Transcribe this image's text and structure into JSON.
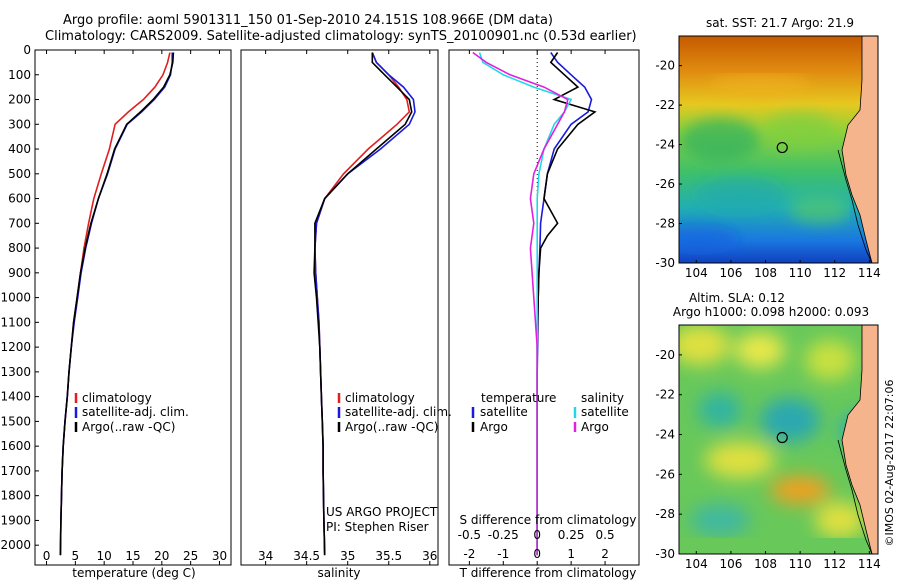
{
  "header": {
    "line1": "Argo profile: aoml 5901311_150 01-Sep-2010 24.151S 108.966E (DM data)",
    "line2": "Climatology: CARS2009. Satellite-adjusted climatology: synTS_20100901.nc (0.53d earlier)"
  },
  "colors": {
    "climatology": "#e02020",
    "satellite": "#1a1adc",
    "argo": "#000000",
    "sal_satellite": "#22d8e8",
    "sal_argo": "#e020e0"
  },
  "chart_data": [
    {
      "type": "line",
      "panel": "temperature",
      "xlabel": "temperature (deg C)",
      "ylabel": "",
      "xlim": [
        -2,
        32
      ],
      "ylim": [
        2080,
        0
      ],
      "xticks": [
        0,
        5,
        10,
        15,
        20,
        25,
        30
      ],
      "yticks": [
        0,
        100,
        200,
        300,
        400,
        500,
        600,
        700,
        800,
        900,
        1000,
        1100,
        1200,
        1300,
        1400,
        1500,
        1600,
        1700,
        1800,
        1900,
        2000
      ],
      "legend": [
        "climatology",
        "satellite-adj. clim.",
        "Argo(..raw -QC)"
      ],
      "series": [
        {
          "name": "climatology",
          "x": [
            21.4,
            21.0,
            20.2,
            18.8,
            16.8,
            14.2,
            11.9,
            10.9,
            9.5,
            8.2,
            7.3,
            6.5,
            5.9,
            5.3,
            4.7,
            4.3,
            3.9,
            3.6,
            3.2,
            2.9,
            2.7,
            2.5,
            2.4
          ],
          "y": [
            10,
            50,
            100,
            150,
            200,
            250,
            300,
            400,
            500,
            600,
            700,
            800,
            900,
            1000,
            1100,
            1200,
            1300,
            1400,
            1500,
            1600,
            1700,
            1900,
            2040
          ]
        },
        {
          "name": "satellite-adj. clim.",
          "x": [
            21.8,
            21.8,
            21.5,
            20.5,
            18.7,
            16.5,
            14.0,
            11.9,
            10.6,
            9.0,
            7.8,
            6.8,
            6.0,
            5.4,
            4.8,
            4.3,
            3.9,
            3.6,
            3.2,
            2.9,
            2.7,
            2.5,
            2.4
          ],
          "y": [
            10,
            50,
            100,
            150,
            200,
            250,
            300,
            400,
            500,
            600,
            700,
            800,
            900,
            1000,
            1100,
            1200,
            1300,
            1400,
            1500,
            1600,
            1700,
            1900,
            2040
          ]
        },
        {
          "name": "Argo(..raw -QC)",
          "x": [
            22.0,
            21.9,
            21.4,
            20.3,
            18.5,
            16.3,
            13.9,
            11.8,
            10.5,
            9.0,
            7.7,
            6.7,
            5.9,
            5.3,
            4.7,
            4.3,
            3.9,
            3.6,
            3.2,
            2.9,
            2.7,
            2.5,
            2.4
          ],
          "y": [
            10,
            50,
            100,
            150,
            200,
            250,
            300,
            400,
            500,
            600,
            700,
            800,
            900,
            1000,
            1100,
            1200,
            1300,
            1400,
            1500,
            1600,
            1700,
            1900,
            2040
          ]
        }
      ]
    },
    {
      "type": "line",
      "panel": "salinity",
      "xlabel": "salinity",
      "xlim": [
        33.7,
        36.1
      ],
      "ylim": [
        2080,
        0
      ],
      "xticks": [
        34,
        34.5,
        35,
        35.5,
        36
      ],
      "legend": [
        "climatology",
        "satellite-adj. clim.",
        "Argo(..raw -QC)"
      ],
      "annotation": [
        "US ARGO PROJECT",
        "PI: Stephen Riser"
      ],
      "series": [
        {
          "name": "climatology",
          "x": [
            35.3,
            35.35,
            35.5,
            35.62,
            35.72,
            35.75,
            35.6,
            35.25,
            34.95,
            34.72,
            34.62,
            34.6,
            34.61,
            34.63,
            34.65,
            34.66,
            34.67,
            34.68,
            34.69,
            34.7,
            34.7,
            34.71,
            34.72
          ],
          "y": [
            10,
            50,
            100,
            150,
            200,
            250,
            300,
            400,
            500,
            600,
            700,
            800,
            900,
            1000,
            1100,
            1200,
            1300,
            1400,
            1500,
            1600,
            1700,
            1900,
            2040
          ]
        },
        {
          "name": "satellite-adj. clim.",
          "x": [
            35.3,
            35.35,
            35.5,
            35.68,
            35.8,
            35.82,
            35.75,
            35.4,
            35.0,
            34.72,
            34.62,
            34.6,
            34.61,
            34.63,
            34.65,
            34.66,
            34.67,
            34.68,
            34.69,
            34.7,
            34.7,
            34.71,
            34.72
          ],
          "y": [
            10,
            50,
            100,
            150,
            200,
            250,
            300,
            400,
            500,
            600,
            700,
            800,
            900,
            1000,
            1100,
            1200,
            1300,
            1400,
            1500,
            1600,
            1700,
            1900,
            2040
          ]
        },
        {
          "name": "Argo(..raw -QC)",
          "x": [
            35.3,
            35.3,
            35.45,
            35.6,
            35.75,
            35.78,
            35.7,
            35.35,
            35.0,
            34.72,
            34.6,
            34.6,
            34.59,
            34.62,
            34.64,
            34.66,
            34.67,
            34.68,
            34.69,
            34.7,
            34.7,
            34.71,
            34.72
          ],
          "y": [
            10,
            50,
            100,
            150,
            200,
            250,
            300,
            400,
            500,
            600,
            700,
            800,
            900,
            1000,
            1100,
            1200,
            1300,
            1400,
            1500,
            1600,
            1700,
            1900,
            2040
          ]
        }
      ]
    },
    {
      "type": "line",
      "panel": "difference",
      "xlabel": "T difference from climatology",
      "x2label": "S difference from climatology",
      "xlim": [
        -2.6,
        3
      ],
      "ylim": [
        2080,
        0
      ],
      "xticks": [
        -2,
        -1,
        0,
        1,
        2
      ],
      "x2ticks": [
        "-0.5",
        "-0.25",
        "0",
        "0.25",
        "0.5"
      ],
      "legend_temperature_title": "temperature",
      "legend_salinity_title": "salinity",
      "legend_items": [
        {
          "label": "satellite",
          "color": "#1a1adc"
        },
        {
          "label": "Argo",
          "color": "#000000"
        },
        {
          "label": "satellite",
          "color": "#22d8e8"
        },
        {
          "label": "Argo",
          "color": "#e020e0"
        }
      ],
      "series": [
        {
          "name": "temperature satellite",
          "x": [
            0.4,
            0.6,
            1.0,
            1.4,
            1.6,
            1.5,
            1.0,
            0.5,
            0.3,
            0.2,
            0.1,
            0.08,
            0.05,
            0.03,
            0.02,
            0.01,
            0,
            0,
            0,
            0,
            0
          ],
          "y": [
            10,
            50,
            100,
            150,
            200,
            250,
            300,
            400,
            500,
            600,
            700,
            800,
            900,
            1000,
            1100,
            1200,
            1300,
            1400,
            1600,
            1800,
            2040
          ]
        },
        {
          "name": "temperature Argo",
          "x": [
            0.6,
            0.4,
            0.8,
            1.2,
            0.5,
            1.7,
            1.2,
            0.6,
            0.3,
            0.2,
            0.6,
            0.3,
            0.1,
            0.05,
            0.03,
            0.01,
            0,
            0,
            0,
            0,
            0
          ],
          "y": [
            10,
            50,
            100,
            150,
            200,
            250,
            300,
            400,
            500,
            600,
            700,
            750,
            800,
            900,
            1000,
            1100,
            1200,
            1400,
            1600,
            1800,
            2040
          ]
        },
        {
          "name": "salinity satellite",
          "x": [
            -1.7,
            -1.6,
            -1.0,
            -0.1,
            1.0,
            0.8,
            0.5,
            0.2,
            0.05,
            0.0,
            0.0,
            0.0,
            0.0,
            0.0,
            0.0,
            0.0,
            0.0
          ],
          "y": [
            10,
            50,
            100,
            150,
            200,
            250,
            300,
            400,
            500,
            600,
            700,
            800,
            1000,
            1200,
            1400,
            1700,
            2040
          ]
        },
        {
          "name": "salinity Argo",
          "x": [
            -1.9,
            -1.5,
            -0.8,
            0.2,
            0.9,
            0.8,
            0.6,
            0.2,
            -0.1,
            -0.2,
            -0.1,
            -0.2,
            -0.1,
            0.0,
            0.0,
            0.0,
            0.0
          ],
          "y": [
            10,
            50,
            100,
            150,
            200,
            250,
            300,
            400,
            500,
            600,
            700,
            800,
            1000,
            1200,
            1400,
            1700,
            2040
          ]
        }
      ]
    },
    {
      "type": "heatmap",
      "panel": "sst-map",
      "title": "sat. SST: 21.7 Argo: 21.9",
      "xlim": [
        103,
        114.5
      ],
      "ylim": [
        -30,
        -18.5
      ],
      "xticks": [
        104,
        106,
        108,
        110,
        112,
        114
      ],
      "yticks": [
        -20,
        -22,
        -24,
        -26,
        -28,
        -30
      ],
      "float_position": {
        "lon": 108.966,
        "lat": -24.151
      }
    },
    {
      "type": "heatmap",
      "panel": "sla-map",
      "title": "Altim. SLA: 0.12",
      "subtitle": "Argo h1000: 0.098 h2000: 0.093",
      "xlim": [
        103,
        114.5
      ],
      "ylim": [
        -30,
        -18.5
      ],
      "xticks": [
        104,
        106,
        108,
        110,
        112,
        114
      ],
      "yticks": [
        -20,
        -22,
        -24,
        -26,
        -28,
        -30
      ],
      "float_position": {
        "lon": 108.966,
        "lat": -24.151
      }
    }
  ],
  "credit": "©IMOS 02-Aug-2017 22:07:06"
}
